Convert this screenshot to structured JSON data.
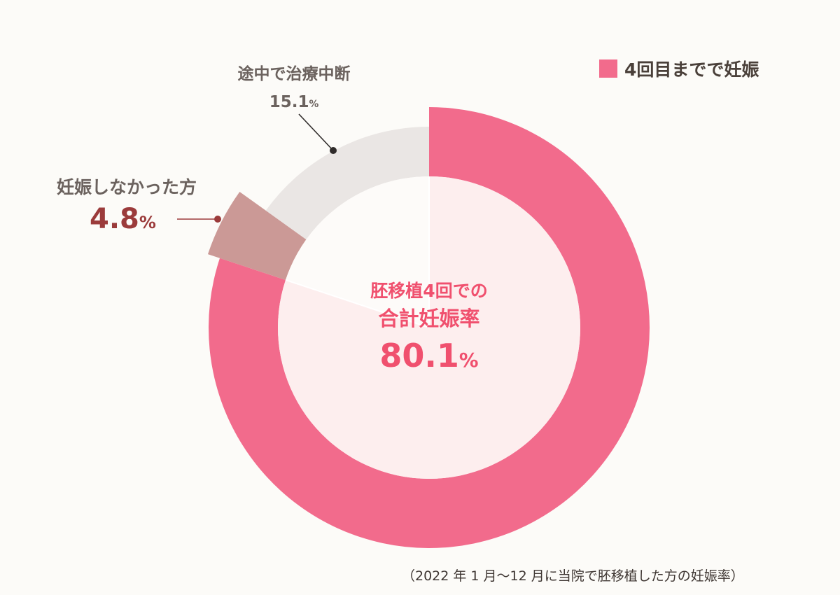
{
  "chart_data": {
    "type": "pie",
    "style": "donut",
    "legend": {
      "position": "top-right",
      "entries": [
        {
          "label": "4回目までで妊娠",
          "color": "#f26b8c"
        }
      ]
    },
    "slices": [
      {
        "label": "4回目までで妊娠",
        "value": 80.1,
        "color": "#f26b8c"
      },
      {
        "label": "妊娠しなかった方",
        "value": 4.8,
        "color": "#cb9996",
        "value_label": "4.8",
        "unit": "%"
      },
      {
        "label": "途中で治療中断",
        "value": 15.1,
        "color": "#eae6e4",
        "value_label": "15.1",
        "unit": "%"
      }
    ],
    "center": {
      "line1": "胚移植4回での",
      "line2": "合計妊娠率",
      "value": "80.1",
      "unit": "%"
    },
    "footnote": "（2022 年 1 月〜12 月に当院で胚移植した方の妊娠率）"
  }
}
